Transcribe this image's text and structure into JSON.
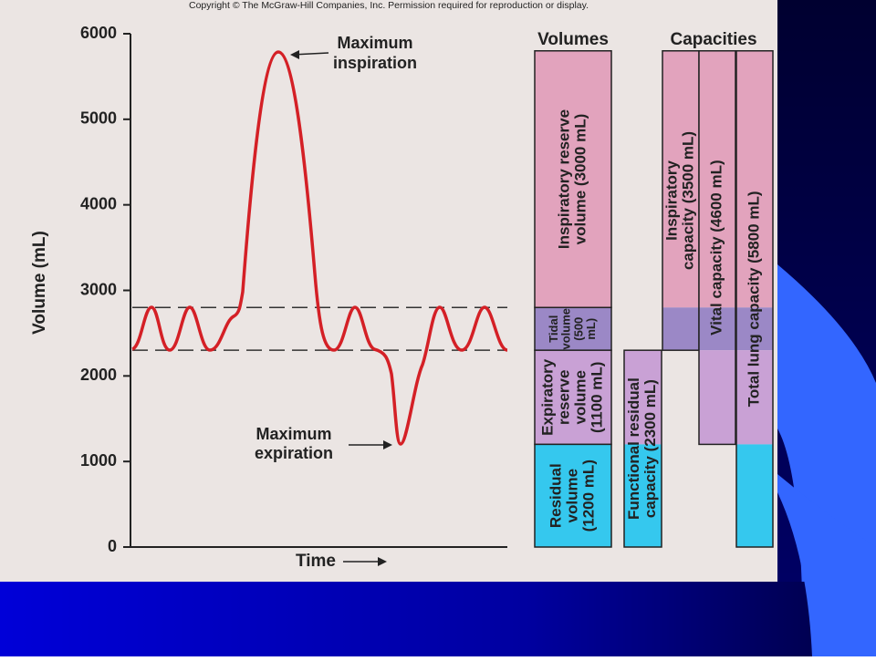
{
  "copyright": "Copyright © The McGraw-Hill Companies, Inc. Permission required for reproduction or display.",
  "y_axis": {
    "label": "Volume (mL)",
    "range": [
      0,
      6000
    ],
    "ticks": [
      0,
      1000,
      2000,
      3000,
      4000,
      5000,
      6000
    ]
  },
  "x_axis": {
    "label": "Time"
  },
  "reference_lines": [
    2300,
    2800
  ],
  "annotations": [
    {
      "lines": [
        "Maximum",
        "inspiration"
      ]
    },
    {
      "lines": [
        "Maximum",
        "expiration"
      ]
    }
  ],
  "volumes": {
    "heading": "Volumes",
    "items": [
      {
        "lines": [
          "Inspiratory reserve",
          "volume (3000 mL)"
        ],
        "range": [
          2800,
          5800
        ],
        "color": "#e2a3bd"
      },
      {
        "lines": [
          "Tidal",
          "volume",
          "(500",
          "mL)"
        ],
        "range": [
          2300,
          2800
        ],
        "color": "#9b88c6"
      },
      {
        "lines": [
          "Expiratory",
          "reserve",
          "volume",
          "(1100 mL)"
        ],
        "range": [
          1200,
          2300
        ],
        "color": "#c9a1d5"
      },
      {
        "lines": [
          "Residual",
          "volume",
          "(1200 mL)"
        ],
        "range": [
          0,
          1200
        ],
        "color": "#35c8ee"
      }
    ]
  },
  "capacities": {
    "heading": "Capacities",
    "items": [
      {
        "lines": [
          "Functional residual",
          "capacity (2300 mL)"
        ],
        "range": [
          0,
          2300
        ]
      },
      {
        "lines": [
          "Inspiratory",
          "capacity (3500 mL)"
        ],
        "range": [
          2300,
          5800
        ]
      },
      {
        "lines": [
          "Vital capacity (4600 mL)"
        ],
        "range": [
          1200,
          5800
        ]
      },
      {
        "lines": [
          "Total lung capacity (5800 mL)"
        ],
        "range": [
          0,
          5800
        ]
      }
    ]
  }
}
